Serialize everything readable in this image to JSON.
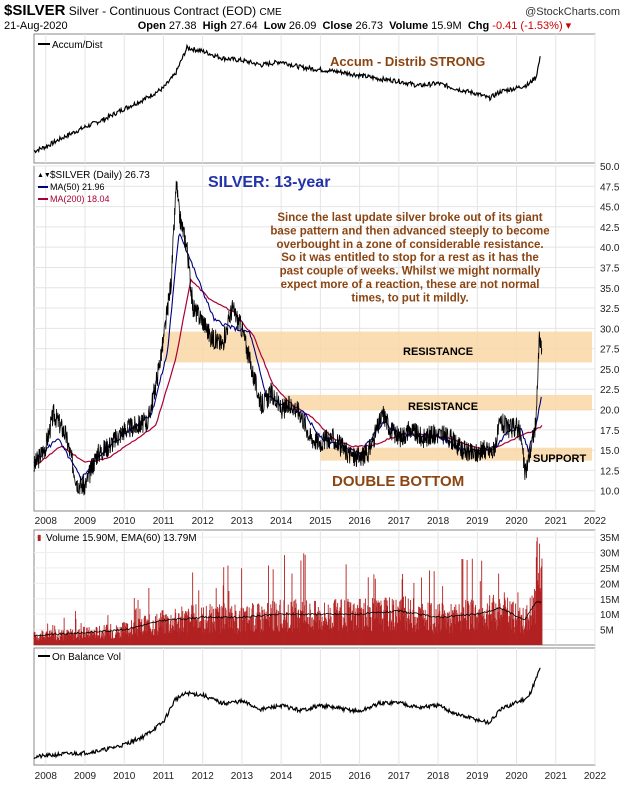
{
  "header": {
    "symbol": "$SILVER",
    "description": "Silver - Continuous Contract (EOD)",
    "exchange": "CME",
    "date": "21-Aug-2020",
    "open_label": "Open",
    "open": "27.38",
    "high_label": "High",
    "high": "27.64",
    "low_label": "Low",
    "low": "26.09",
    "close_label": "Close",
    "close": "26.73",
    "volume_label": "Volume",
    "volume": "15.9M",
    "chg_label": "Chg",
    "chg": "-0.41 (-1.53%)",
    "logo": "@StockCharts.com"
  },
  "panels": {
    "accum": {
      "legend": "Accum/Dist",
      "annotation": "Accum - Distrib STRONG"
    },
    "price": {
      "legend_symbol": "$SILVER (Daily) 26.73",
      "legend_ma50": "MA(50) 21.96",
      "legend_ma200": "MA(200) 18.04",
      "title": "SILVER: 13-year",
      "commentary": "Since the last update silver broke out of its giant base pattern and then advanced steeply to become overbought in a zone of considerable resistance. So it was entitled to stop for a rest as it has the past couple of weeks. Whilst we might normally expect more of a reaction, these are not normal times, to put it mildly.",
      "commentary_lines": [
        "Since the last update silver broke out of its giant",
        "base pattern and then advanced steeply to become",
        "overbought in a zone of considerable resistance.",
        "So it was entitled to stop for a rest as it has the",
        "past couple of weeks. Whilst we might normally",
        "expect more of a reaction, these are not normal",
        "times, to put it mildly."
      ],
      "resistance_upper": "RESISTANCE",
      "resistance_lower": "RESISTANCE",
      "support": "SUPPORT",
      "pattern": "DOUBLE BOTTOM"
    },
    "volume": {
      "legend": "Volume 15.90M, EMA(60) 13.79M"
    },
    "obv": {
      "legend": "On Balance Vol"
    }
  },
  "colors": {
    "price_line": "#000000",
    "ma50": "#000080",
    "ma200": "#aa0033",
    "zone": "#f9d7a6",
    "annotation": "#8b4513",
    "title_blue": "#2233aa",
    "volume_bar": "#b22222",
    "chg_red": "#cc0000"
  },
  "chart_data": [
    {
      "type": "line",
      "name": "Accum/Dist",
      "x": [
        2007.7,
        2008.0,
        2008.5,
        2009.0,
        2009.5,
        2010.0,
        2010.5,
        2011.0,
        2011.3,
        2011.6,
        2012.0,
        2012.5,
        2013.0,
        2013.5,
        2014.0,
        2014.5,
        2015.0,
        2015.5,
        2016.0,
        2016.5,
        2017.0,
        2017.5,
        2018.0,
        2018.5,
        2019.0,
        2019.3,
        2019.6,
        2020.0,
        2020.3,
        2020.5,
        2020.6
      ],
      "values": [
        5,
        9,
        18,
        26,
        33,
        42,
        50,
        60,
        72,
        95,
        92,
        86,
        84,
        80,
        83,
        78,
        76,
        74,
        71,
        68,
        66,
        62,
        64,
        59,
        55,
        51,
        57,
        60,
        63,
        70,
        86
      ]
    },
    {
      "type": "line",
      "x_ticks": [
        "2008",
        "2009",
        "2010",
        "2011",
        "2012",
        "2013",
        "2014",
        "2015",
        "2016",
        "2017",
        "2018",
        "2019",
        "2020",
        "2021",
        "2022"
      ],
      "y_ticks": [
        "50.0",
        "47.5",
        "45.0",
        "42.5",
        "40.0",
        "37.5",
        "35.0",
        "32.5",
        "30.0",
        "27.5",
        "25.0",
        "22.5",
        "20.0",
        "17.5",
        "15.0",
        "12.5",
        "10.0"
      ],
      "ylim": [
        7.5,
        50
      ],
      "zones": [
        {
          "label": "RESISTANCE",
          "from": 25.8,
          "to": 29.6
        },
        {
          "label": "RESISTANCE",
          "from": 19.9,
          "to": 21.8
        },
        {
          "label": "SUPPORT",
          "from": 13.7,
          "to": 15.3
        }
      ],
      "series": [
        {
          "name": "$SILVER (Daily)",
          "x": [
            2007.7,
            2008.0,
            2008.2,
            2008.5,
            2008.8,
            2009.0,
            2009.3,
            2009.6,
            2010.0,
            2010.3,
            2010.6,
            2010.8,
            2011.0,
            2011.2,
            2011.33,
            2011.4,
            2011.6,
            2011.75,
            2012.0,
            2012.2,
            2012.5,
            2012.75,
            2013.0,
            2013.3,
            2013.5,
            2013.75,
            2014.0,
            2014.3,
            2014.5,
            2014.75,
            2015.0,
            2015.3,
            2015.6,
            2015.9,
            2016.2,
            2016.6,
            2016.8,
            2017.0,
            2017.3,
            2017.6,
            2018.0,
            2018.3,
            2018.6,
            2018.9,
            2019.2,
            2019.4,
            2019.6,
            2019.8,
            2020.0,
            2020.1,
            2020.22,
            2020.35,
            2020.5,
            2020.58,
            2020.65
          ],
          "values": [
            13,
            15.5,
            19.5,
            17,
            11,
            10.5,
            14.5,
            15.5,
            17.5,
            18,
            18.5,
            23,
            28.5,
            36,
            48,
            44,
            40,
            32.5,
            31,
            29,
            28,
            32.5,
            30,
            24,
            20.5,
            22,
            20,
            20.5,
            19.5,
            16.5,
            16,
            16.5,
            15,
            14,
            14.5,
            19.5,
            17.5,
            16.5,
            17.5,
            16.5,
            17,
            16.5,
            15,
            14.5,
            15,
            14.8,
            18.5,
            17.5,
            18,
            17,
            12,
            15,
            18.5,
            29,
            26.7
          ]
        },
        {
          "name": "MA(50)",
          "x": [
            2007.7,
            2008.3,
            2008.9,
            2009.4,
            2010.0,
            2010.7,
            2011.1,
            2011.4,
            2011.8,
            2012.3,
            2012.8,
            2013.2,
            2013.6,
            2014.0,
            2014.6,
            2015.0,
            2015.6,
            2016.0,
            2016.6,
            2017.0,
            2017.6,
            2018.0,
            2018.6,
            2019.0,
            2019.5,
            2019.8,
            2020.1,
            2020.3,
            2020.5,
            2020.65
          ],
          "values": [
            13.5,
            16.5,
            11.5,
            14.5,
            17,
            19.5,
            27,
            42,
            37,
            31,
            30,
            29.5,
            22,
            20.5,
            19.5,
            16.5,
            15.5,
            14.5,
            18.5,
            17,
            16.8,
            16.8,
            15,
            14.8,
            15.5,
            17.5,
            17.8,
            15,
            18,
            22
          ]
        },
        {
          "name": "MA(200)",
          "x": [
            2007.7,
            2008.4,
            2009.0,
            2009.6,
            2010.2,
            2010.8,
            2011.3,
            2011.7,
            2012.2,
            2012.8,
            2013.3,
            2013.8,
            2014.3,
            2014.8,
            2015.3,
            2015.8,
            2016.3,
            2016.8,
            2017.3,
            2017.8,
            2018.3,
            2018.8,
            2019.3,
            2019.8,
            2020.2,
            2020.5,
            2020.65
          ],
          "values": [
            13,
            15.5,
            13.5,
            14,
            16,
            18,
            26,
            36,
            33.5,
            32,
            29,
            23,
            20.5,
            19,
            16.5,
            15.5,
            15.5,
            16.5,
            17,
            16.8,
            16.5,
            15.5,
            15,
            16,
            17,
            17.5,
            18
          ]
        }
      ]
    },
    {
      "type": "bar",
      "name": "Volume",
      "y_ticks": [
        "35M",
        "30M",
        "25M",
        "20M",
        "15M",
        "10M",
        "5M"
      ],
      "ylim": [
        0,
        36
      ],
      "series": [
        {
          "name": "EMA(60)",
          "x": [
            2007.7,
            2009.0,
            2010.0,
            2011.0,
            2012.0,
            2013.0,
            2014.0,
            2015.0,
            2016.0,
            2017.0,
            2018.0,
            2019.0,
            2019.6,
            2020.2,
            2020.5,
            2020.65
          ],
          "values": [
            3,
            4,
            5,
            8,
            9,
            9,
            10,
            10,
            10,
            11,
            9,
            10,
            12,
            8,
            14,
            13.8
          ]
        }
      ]
    },
    {
      "type": "line",
      "name": "On Balance Vol",
      "x": [
        2007.7,
        2008.0,
        2008.5,
        2009.0,
        2009.5,
        2010.0,
        2010.5,
        2011.0,
        2011.3,
        2011.6,
        2012.0,
        2012.5,
        2013.0,
        2013.5,
        2014.0,
        2014.5,
        2015.0,
        2015.5,
        2016.0,
        2016.5,
        2017.0,
        2017.5,
        2018.0,
        2018.5,
        2019.0,
        2019.3,
        2019.6,
        2020.0,
        2020.3,
        2020.5,
        2020.6
      ],
      "values": [
        2,
        3,
        5,
        6,
        9,
        14,
        22,
        36,
        58,
        64,
        62,
        54,
        56,
        48,
        52,
        47,
        52,
        49,
        46,
        54,
        55,
        50,
        52,
        43,
        38,
        35,
        48,
        55,
        60,
        78,
        88
      ]
    }
  ]
}
